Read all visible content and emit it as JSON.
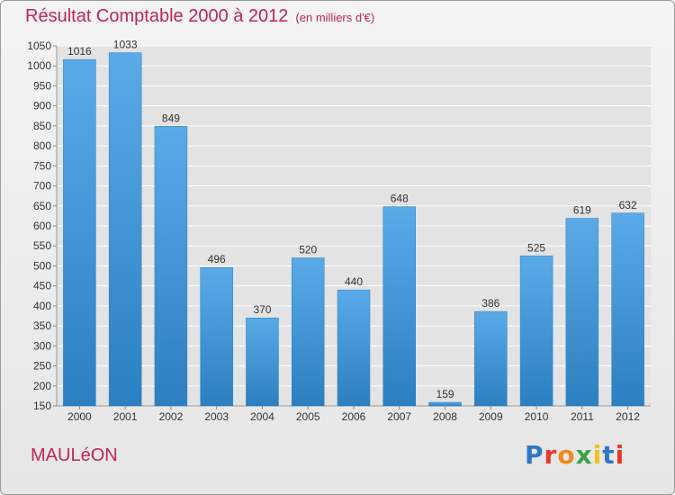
{
  "header": {
    "title": "Résultat Comptable 2000 à 2012",
    "subtitle": "(en milliers d'€)"
  },
  "footer": {
    "commune": "MAULéON",
    "brand": "Proxiti",
    "brand_colors": [
      "#2f78c4",
      "#e8392a",
      "#f08a1c",
      "#3aa444",
      "#f2c21a",
      "#2f78c4",
      "#e8392a"
    ]
  },
  "colors": {
    "bar_top": "#5aaae8",
    "bar_bottom": "#2c7fc0",
    "title": "#c0245c",
    "grid": "#ffffff"
  },
  "chart_data": {
    "type": "bar",
    "title": "Résultat Comptable 2000 à 2012",
    "subtitle": "(en milliers d'€)",
    "categories": [
      "2000",
      "2001",
      "2002",
      "2003",
      "2004",
      "2005",
      "2006",
      "2007",
      "2008",
      "2009",
      "2010",
      "2011",
      "2012"
    ],
    "values": [
      1016,
      1033,
      849,
      496,
      370,
      520,
      440,
      648,
      159,
      386,
      525,
      619,
      632
    ],
    "ylim": [
      150,
      1050
    ],
    "yticks": [
      150,
      200,
      250,
      300,
      350,
      400,
      450,
      500,
      550,
      600,
      650,
      700,
      750,
      800,
      850,
      900,
      950,
      1000,
      1050
    ],
    "grid": true,
    "xlabel": "",
    "ylabel": ""
  }
}
